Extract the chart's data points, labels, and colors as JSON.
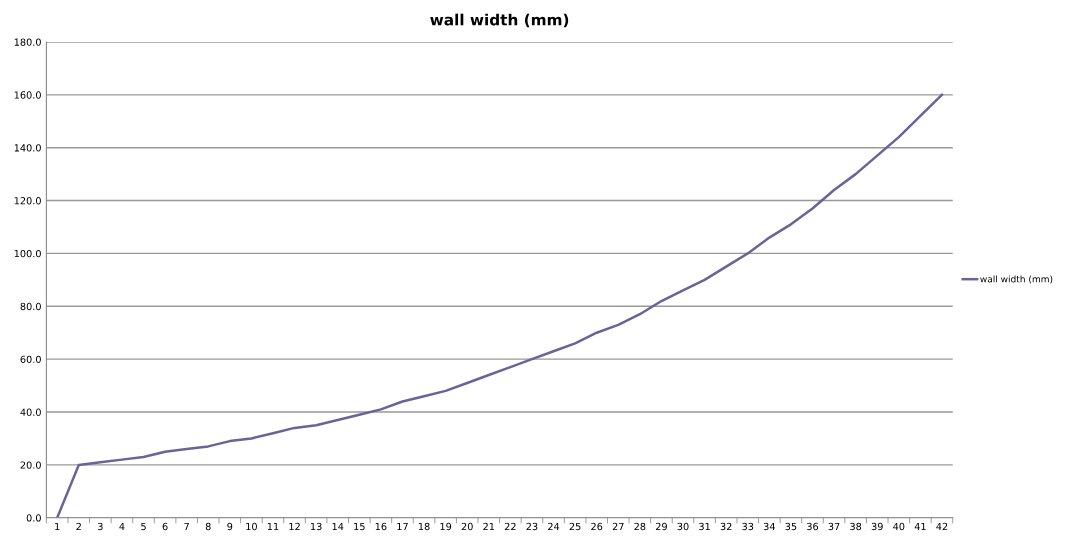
{
  "chart_data": {
    "type": "line",
    "title": "wall width (mm)",
    "categories": [
      "1",
      "2",
      "3",
      "4",
      "5",
      "6",
      "7",
      "8",
      "9",
      "10",
      "11",
      "12",
      "13",
      "14",
      "15",
      "16",
      "17",
      "18",
      "19",
      "20",
      "21",
      "22",
      "23",
      "24",
      "25",
      "26",
      "27",
      "28",
      "29",
      "30",
      "31",
      "32",
      "33",
      "34",
      "35",
      "36",
      "37",
      "38",
      "39",
      "40",
      "41",
      "42"
    ],
    "series": [
      {
        "name": "wall width (mm)",
        "color": "#6b6398",
        "values": [
          0,
          20,
          21,
          22,
          23,
          25,
          26,
          27,
          29,
          30,
          32,
          34,
          35,
          37,
          39,
          41,
          44,
          46,
          48,
          51,
          54,
          57,
          60,
          63,
          66,
          70,
          73,
          77,
          82,
          86,
          90,
          95,
          100,
          106,
          111,
          117,
          124,
          130,
          137,
          144,
          152,
          160
        ]
      }
    ],
    "ylim": [
      0,
      180
    ],
    "yticks": [
      {
        "value": 0,
        "label": "0.0"
      },
      {
        "value": 20,
        "label": "20.0"
      },
      {
        "value": 40,
        "label": "40.0"
      },
      {
        "value": 60,
        "label": "60.0"
      },
      {
        "value": 80,
        "label": "80.0"
      },
      {
        "value": 100,
        "label": "100.0"
      },
      {
        "value": 120,
        "label": "120.0"
      },
      {
        "value": 140,
        "label": "140.0"
      },
      {
        "value": 160,
        "label": "160.0"
      },
      {
        "value": 180,
        "label": "180.0"
      }
    ],
    "grid": "y",
    "legend": "right",
    "marker": "none",
    "line_style": "solid"
  }
}
